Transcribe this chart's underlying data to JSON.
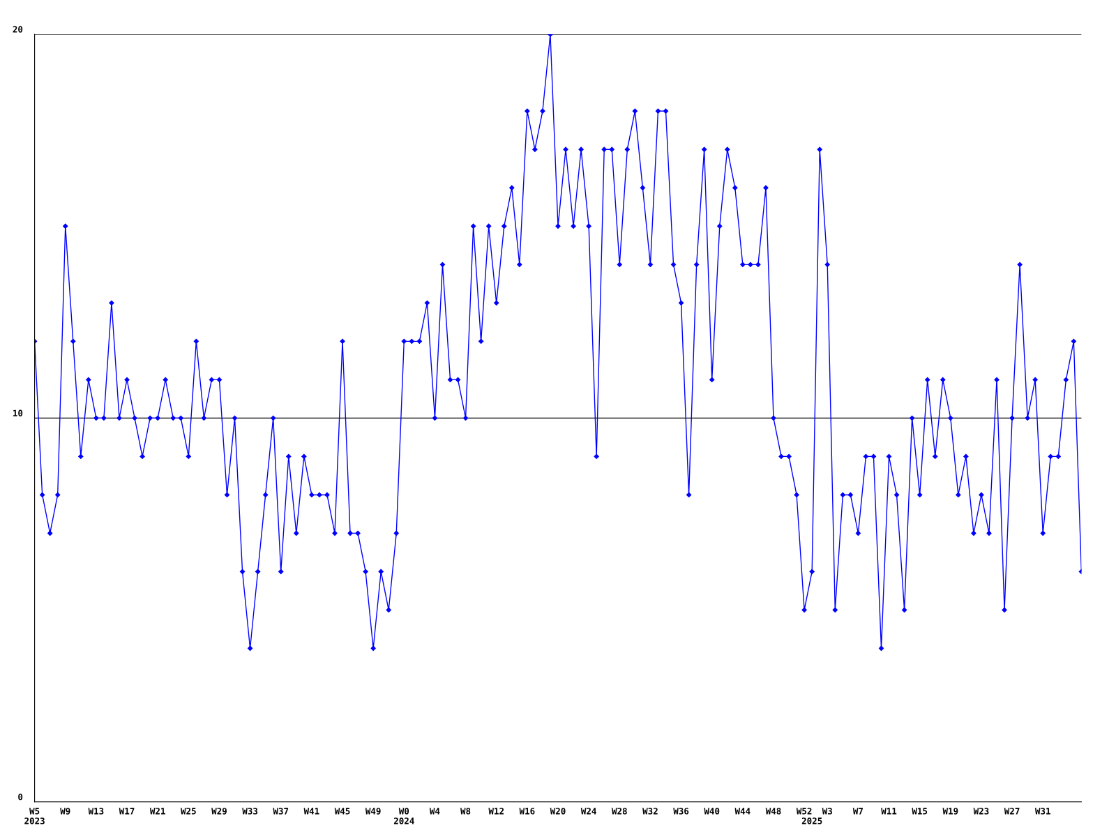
{
  "chart_data": {
    "type": "line",
    "categories": [
      "W5\n2023",
      null,
      null,
      null,
      "W9",
      null,
      null,
      null,
      "W13",
      null,
      null,
      null,
      "W17",
      null,
      null,
      null,
      "W21",
      null,
      null,
      null,
      "W25",
      null,
      null,
      null,
      "W29",
      null,
      null,
      null,
      "W33",
      null,
      null,
      null,
      "W37",
      null,
      null,
      null,
      "W41",
      null,
      null,
      null,
      "W45",
      null,
      null,
      null,
      "W49",
      null,
      null,
      null,
      "W0\n2024",
      null,
      null,
      null,
      "W4",
      null,
      null,
      null,
      "W8",
      null,
      null,
      null,
      "W12",
      null,
      null,
      null,
      "W16",
      null,
      null,
      null,
      "W20",
      null,
      null,
      null,
      "W24",
      null,
      null,
      null,
      "W28",
      null,
      null,
      null,
      "W32",
      null,
      null,
      null,
      "W36",
      null,
      null,
      null,
      "W40",
      null,
      null,
      null,
      "W44",
      null,
      null,
      null,
      "W48",
      null,
      null,
      null,
      "W52",
      "\n2025",
      null,
      "W3",
      null,
      null,
      null,
      "W7",
      null,
      null,
      null,
      "W11",
      null,
      null,
      null,
      "W15",
      null,
      null,
      null,
      "W19",
      null,
      null,
      null,
      "W23",
      null,
      null,
      null,
      "W27",
      null,
      null,
      null,
      "W31",
      null,
      null,
      null,
      null,
      null
    ],
    "series": [
      {
        "color": "#0000ff",
        "values": [
          12,
          8,
          7,
          8,
          15,
          12,
          9,
          11,
          10,
          10,
          13,
          10,
          11,
          10,
          9,
          10,
          10,
          11,
          10,
          10,
          9,
          12,
          10,
          11,
          11,
          8,
          10,
          6,
          4,
          6,
          8,
          10,
          6,
          9,
          7,
          9,
          8,
          8,
          8,
          7,
          12,
          7,
          7,
          6,
          4,
          6,
          5,
          7,
          12,
          12,
          12,
          13,
          10,
          14,
          11,
          11,
          10,
          15,
          12,
          15,
          13,
          15,
          16,
          14,
          18,
          17,
          18,
          20,
          15,
          17,
          15,
          17,
          15,
          9,
          17,
          17,
          14,
          17,
          18,
          16,
          14,
          18,
          18,
          14,
          13,
          8,
          14,
          17,
          11,
          15,
          17,
          16,
          14,
          14,
          14,
          16,
          10,
          9,
          9,
          8,
          5,
          6,
          17,
          14,
          5,
          8,
          8,
          7,
          9,
          9,
          4,
          9,
          8,
          5,
          10,
          8,
          11,
          9,
          11,
          10,
          8,
          9,
          7,
          8,
          7,
          11,
          5,
          10,
          14,
          10,
          11,
          7,
          9,
          9,
          11,
          12,
          6
        ]
      }
    ],
    "ylim": [
      0,
      20
    ],
    "yticks": [
      0,
      10,
      20
    ],
    "grid": "y",
    "marker": "diamond",
    "line_style": "solid"
  }
}
